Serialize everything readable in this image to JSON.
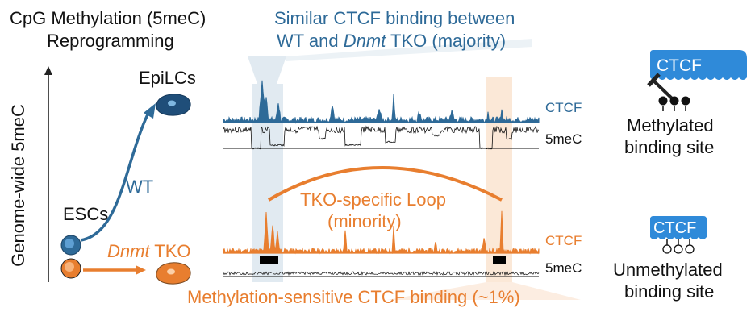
{
  "title": {
    "line1": "CpG Methylation (5meC)",
    "line2": "Reprogramming"
  },
  "top_caption": {
    "line1": "Similar CTCF binding between",
    "line2_a": "WT and ",
    "line2_italic": "Dnmt",
    "line2_b": " TKO (majority)"
  },
  "y_axis_label": "Genome-wide 5meC",
  "cells": {
    "epilc_label": "EpiLCs",
    "esc_label": "ESCs",
    "wt_label": "WT",
    "tko_italic": "Dnmt",
    "tko_rest": " TKO"
  },
  "tracks": {
    "ctcf_label_top": "CTCF",
    "meth_label_top": "5meC",
    "ctcf_label_bottom": "CTCF",
    "meth_label_bottom": "5meC"
  },
  "loop": {
    "line1": "TKO-specific Loop",
    "line2": "(minority)"
  },
  "bottom_caption": "Methylation-sensitive CTCF binding (~1%)",
  "right_panel": {
    "ctcf_box_top": "CTCF",
    "methylated_line1": "Methylated",
    "methylated_line2": "binding site",
    "ctcf_box_bottom": "CTCF",
    "unmethylated_line1": "Unmethylated",
    "unmethylated_line2": "binding site"
  },
  "colors": {
    "blue": "#2e6a98",
    "orange": "#e87e2f",
    "ctcf_box": "#2f8ad9",
    "highlight_blue": "#c8d9e6",
    "highlight_orange": "#f9d8bd",
    "text": "#111111"
  },
  "icons": [
    "up-arrow-icon",
    "esc-cell-icon",
    "epilc-cell-icon",
    "tko-cell-icon",
    "inhibit-icon",
    "methylated-cpg-icon",
    "unmethylated-cpg-icon"
  ]
}
